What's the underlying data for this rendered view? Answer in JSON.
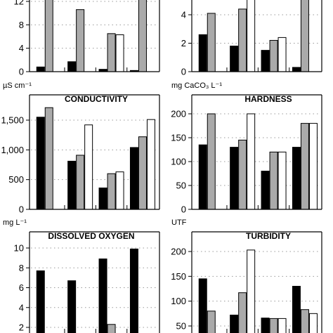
{
  "chart_data": [
    {
      "type": "bar",
      "title": "",
      "unit_label": "",
      "ylim": [
        0,
        12
      ],
      "yticks": [
        0,
        4,
        8,
        12
      ],
      "ytick_labels": [
        "0",
        "4",
        "8",
        "12"
      ],
      "grid": "y-dotted",
      "groups": 4,
      "series": [
        {
          "fill": "#000000",
          "values": [
            0.8,
            1.7,
            0.4,
            0.2
          ]
        },
        {
          "fill": "#aaaaaa",
          "values": [
            13.5,
            10.6,
            6.5,
            13.5
          ]
        },
        {
          "fill": "#ffffff",
          "values": [
            null,
            null,
            6.3,
            null
          ]
        }
      ]
    },
    {
      "type": "bar",
      "title": "",
      "unit_label": "",
      "ylim": [
        0,
        5
      ],
      "yticks": [
        0,
        2,
        4
      ],
      "ytick_labels": [
        "0",
        "2",
        "4"
      ],
      "grid": "y-dotted",
      "groups": 4,
      "series": [
        {
          "fill": "#000000",
          "values": [
            2.6,
            1.8,
            1.5,
            0.3
          ]
        },
        {
          "fill": "#aaaaaa",
          "values": [
            4.1,
            4.4,
            2.2,
            5.5
          ]
        },
        {
          "fill": "#ffffff",
          "values": [
            null,
            5.5,
            2.4,
            null
          ]
        }
      ]
    },
    {
      "type": "bar",
      "title": "CONDUCTIVITY",
      "unit_label": "µS cm⁻¹",
      "ylim": [
        0,
        1900
      ],
      "yticks": [
        0,
        500,
        1000,
        1500
      ],
      "ytick_labels": [
        "0",
        "500",
        "1,000",
        "1,500"
      ],
      "grid": "y-dotted",
      "groups": 4,
      "series": [
        {
          "fill": "#000000",
          "values": [
            1550,
            810,
            360,
            1040
          ]
        },
        {
          "fill": "#aaaaaa",
          "values": [
            1710,
            910,
            600,
            1220
          ]
        },
        {
          "fill": "#ffffff",
          "values": [
            null,
            1420,
            630,
            1510
          ]
        }
      ]
    },
    {
      "type": "bar",
      "title": "HARDNESS",
      "unit_label": "mg CaCO₃ L⁻¹",
      "ylim": [
        0,
        215
      ],
      "yticks": [
        0,
        50,
        100,
        150,
        200
      ],
      "ytick_labels": [
        "0",
        "50",
        "100",
        "150",
        "200"
      ],
      "grid": "y-dotted",
      "groups": 4,
      "series": [
        {
          "fill": "#000000",
          "values": [
            135,
            130,
            80,
            130
          ]
        },
        {
          "fill": "#aaaaaa",
          "values": [
            200,
            145,
            120,
            180
          ]
        },
        {
          "fill": "#ffffff",
          "values": [
            null,
            200,
            120,
            180
          ]
        }
      ]
    },
    {
      "type": "bar",
      "title": "DISSOLVED OXYGEN",
      "unit_label": "mg L⁻¹",
      "ylim": [
        1.5,
        11
      ],
      "yticks": [
        2,
        4,
        6,
        8,
        10
      ],
      "ytick_labels": [
        "2",
        "4",
        "6",
        "8",
        "10"
      ],
      "grid": "y-dotted",
      "groups": 4,
      "series": [
        {
          "fill": "#000000",
          "values": [
            7.7,
            6.7,
            8.9,
            9.9
          ]
        },
        {
          "fill": "#aaaaaa",
          "values": [
            null,
            null,
            2.3,
            null
          ]
        },
        {
          "fill": "#ffffff",
          "values": [
            null,
            null,
            null,
            null
          ]
        }
      ]
    },
    {
      "type": "bar",
      "title": "TURBIDITY",
      "unit_label": "UTF",
      "ylim": [
        40,
        225
      ],
      "yticks": [
        50,
        100,
        150,
        200
      ],
      "ytick_labels": [
        "50",
        "100",
        "150",
        "200"
      ],
      "grid": "y-dotted",
      "groups": 4,
      "series": [
        {
          "fill": "#000000",
          "values": [
            145,
            72,
            66,
            130
          ]
        },
        {
          "fill": "#aaaaaa",
          "values": [
            80,
            117,
            65,
            83
          ]
        },
        {
          "fill": "#ffffff",
          "values": [
            null,
            203,
            65,
            75
          ]
        }
      ]
    }
  ]
}
